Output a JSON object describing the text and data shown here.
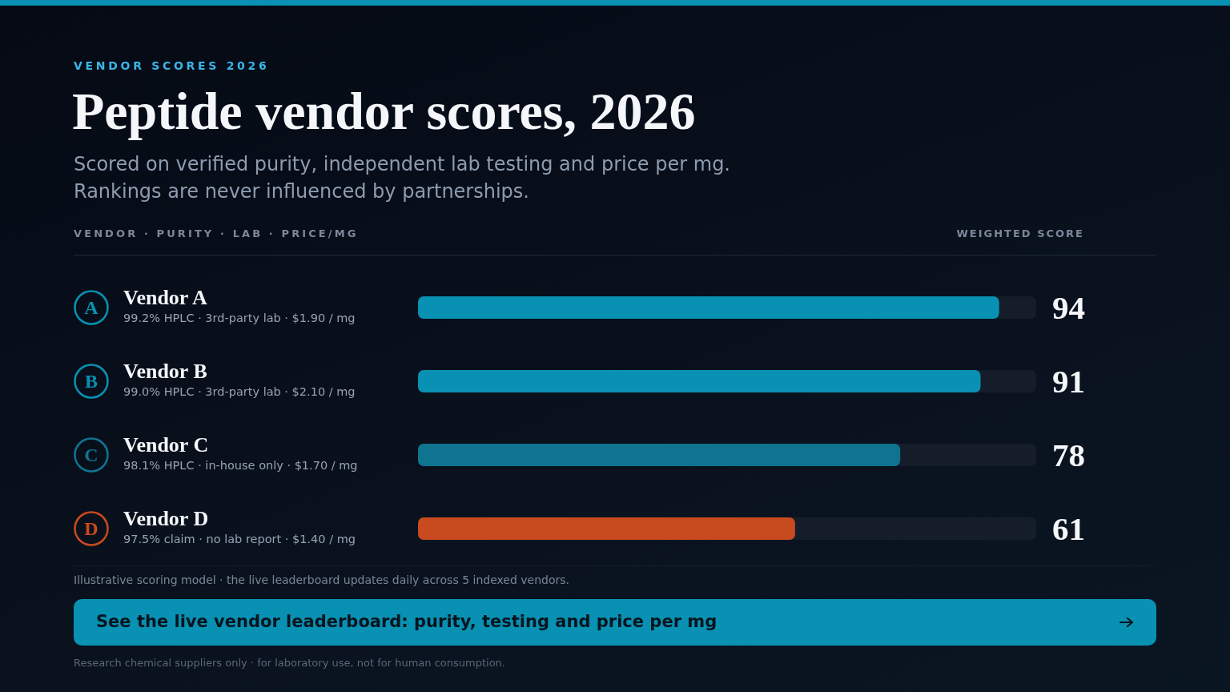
{
  "chart_data": {
    "type": "bar",
    "orientation": "horizontal",
    "title": "Peptide vendor scores, 2026",
    "subtitle": "Scored on verified purity, independent lab testing and price per mg.\nRankings are never influenced by partnerships.",
    "ylabel": "VENDOR · PURITY · LAB · PRICE/MG",
    "xlabel": "WEIGHTED SCORE",
    "categories": [
      "Vendor A",
      "Vendor B",
      "Vendor C",
      "Vendor D"
    ],
    "values": [
      94,
      91,
      78,
      61
    ],
    "colors": [
      "#0891b2",
      "#0891b2",
      "#0e7490",
      "#c84a1f"
    ],
    "xlim": [
      0,
      100
    ],
    "tick_labels": "y",
    "data_labels": true,
    "annotations": [
      "VENDOR SCORES 2026",
      "99.2% HPLC · 3rd-party lab · $1.90 / mg",
      "99.0% HPLC · 3rd-party lab · $2.10 / mg",
      "98.1% HPLC · in-house only · $1.70 / mg",
      "97.5% claim · no lab report · $1.40 / mg",
      "A",
      "B",
      "C",
      "D",
      "Illustrative scoring model · the live leaderboard updates daily across 5 indexed vendors.",
      "See the live vendor leaderboard: purity, testing and price per mg",
      "Research chemical suppliers only · for laboratory use, not for human consumption."
    ]
  }
}
